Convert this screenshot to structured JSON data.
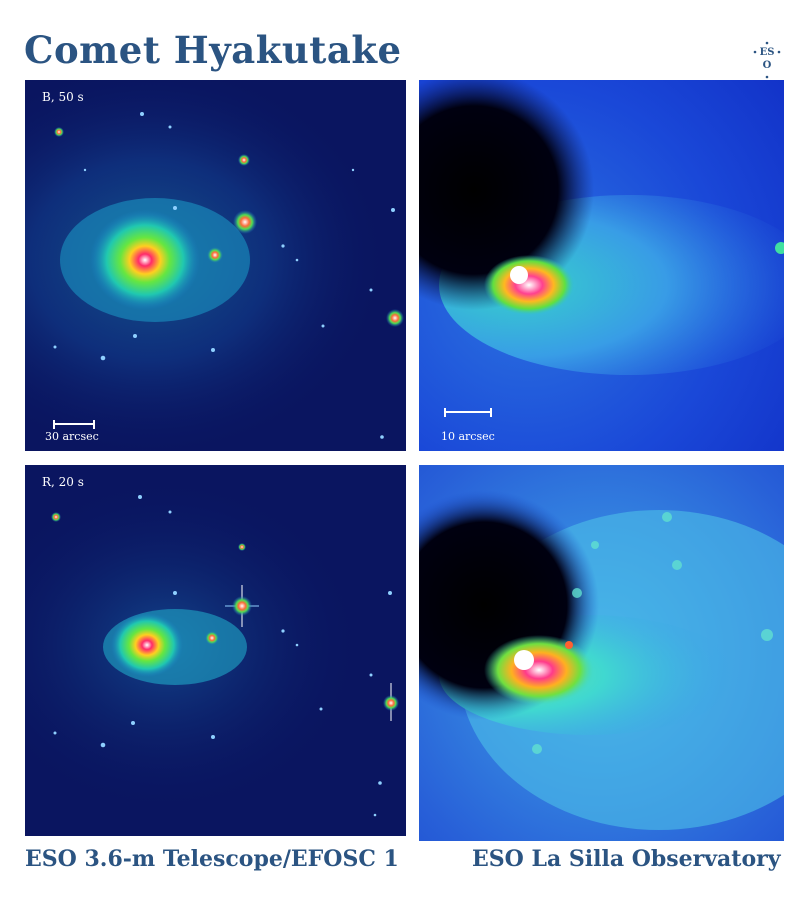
{
  "title": "Comet Hyakutake",
  "logo_text": "ESO",
  "panels": {
    "top_left": {
      "label": "B, 50 s",
      "scale_label": "30 arcsec"
    },
    "top_right": {
      "scale_label": "10 arcsec"
    },
    "bottom_left": {
      "label": "R, 20 s"
    },
    "bottom_right": {}
  },
  "footer": {
    "left": "ESO 3.6-m Telescope/EFOSC 1",
    "right": "ESO La Silla Observatory"
  },
  "colors": {
    "title": "#2b5482",
    "sky": "#0a1560"
  }
}
